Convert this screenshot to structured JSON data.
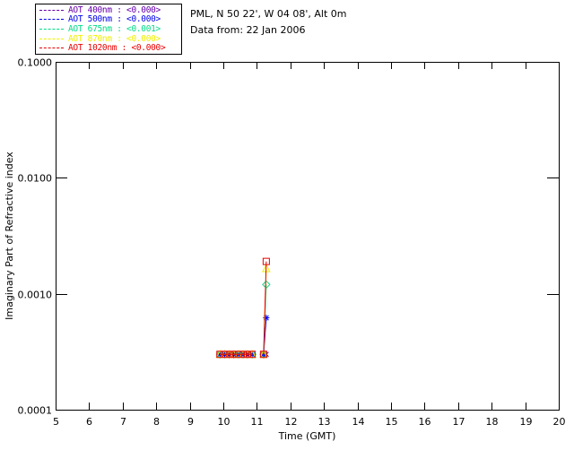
{
  "header": {
    "location_line": "PML, N 50 22', W 04 08', Alt 0m",
    "data_line": "Data from: 22 Jan 2006"
  },
  "legend": {
    "items": [
      {
        "label": "AOT  400nm : <0.000>",
        "color": "#6600AA"
      },
      {
        "label": "AOT  500nm : <0.000>",
        "color": "#0000EE"
      },
      {
        "label": "AOT  675nm : <0.001>",
        "color": "#00DC87"
      },
      {
        "label": "AOT  870nm : <0.000>",
        "color": "#F0F000"
      },
      {
        "label": "AOT 1020nm : <0.000>",
        "color": "#E80000"
      }
    ]
  },
  "chart_data": {
    "type": "line",
    "title": "",
    "xlabel": "Time (GMT)",
    "ylabel": "Imaginary Part of Refractive index",
    "xlim": [
      5,
      20
    ],
    "x_ticks": [
      5,
      6,
      7,
      8,
      9,
      10,
      11,
      12,
      13,
      14,
      15,
      16,
      17,
      18,
      19,
      20
    ],
    "yscale": "log",
    "ylim": [
      0.0001,
      0.1
    ],
    "y_ticks": [
      0.1,
      0.01,
      0.001,
      0.0001
    ],
    "y_tick_labels": [
      "0.1000",
      "0.0100",
      "0.0010",
      "0.0001"
    ],
    "grid": false,
    "legend_position": "outside-top-left",
    "series": [
      {
        "name": "AOT 400nm",
        "color": "#6600AA",
        "marker": "cross",
        "segments": [
          {
            "x": [
              9.9,
              10.04,
              10.18,
              10.31,
              10.45,
              10.59,
              10.72,
              10.86
            ],
            "y": [
              0.0003,
              0.0003,
              0.0003,
              0.0003,
              0.0003,
              0.0003,
              0.0003,
              0.0003
            ]
          },
          {
            "x": [
              11.2,
              11.28
            ],
            "y": [
              0.0003,
              0.0003
            ]
          }
        ]
      },
      {
        "name": "AOT 500nm",
        "color": "#0000EE",
        "marker": "asterisk",
        "segments": [
          {
            "x": [
              9.9,
              10.04,
              10.18,
              10.31,
              10.45,
              10.59,
              10.72,
              10.86
            ],
            "y": [
              0.0003,
              0.0003,
              0.0003,
              0.0003,
              0.0003,
              0.0003,
              0.0003,
              0.0003
            ]
          },
          {
            "x": [
              11.2,
              11.28
            ],
            "y": [
              0.0003,
              0.00062
            ]
          }
        ]
      },
      {
        "name": "AOT 675nm",
        "color": "#00DC87",
        "marker": "diamond",
        "segments": [
          {
            "x": [
              9.9,
              10.04,
              10.18,
              10.31,
              10.45,
              10.59,
              10.72,
              10.86
            ],
            "y": [
              0.0003,
              0.0003,
              0.0003,
              0.0003,
              0.0003,
              0.0003,
              0.0003,
              0.0003
            ]
          },
          {
            "x": [
              11.2,
              11.28
            ],
            "y": [
              0.0003,
              0.0012
            ]
          }
        ]
      },
      {
        "name": "AOT 870nm",
        "color": "#F0F000",
        "marker": "triangle",
        "segments": [
          {
            "x": [
              9.9,
              10.04,
              10.18,
              10.31,
              10.45,
              10.59,
              10.72,
              10.86
            ],
            "y": [
              0.0003,
              0.0003,
              0.0003,
              0.0003,
              0.0003,
              0.0003,
              0.0003,
              0.0003
            ]
          },
          {
            "x": [
              11.2,
              11.28
            ],
            "y": [
              0.0003,
              0.00165
            ]
          }
        ]
      },
      {
        "name": "AOT 1020nm",
        "color": "#E80000",
        "marker": "square",
        "segments": [
          {
            "x": [
              9.9,
              10.04,
              10.18,
              10.31,
              10.45,
              10.59,
              10.72,
              10.86
            ],
            "y": [
              0.0003,
              0.0003,
              0.0003,
              0.0003,
              0.0003,
              0.0003,
              0.0003,
              0.0003
            ]
          },
          {
            "x": [
              11.2,
              11.28
            ],
            "y": [
              0.0003,
              0.0019
            ]
          }
        ]
      }
    ]
  }
}
